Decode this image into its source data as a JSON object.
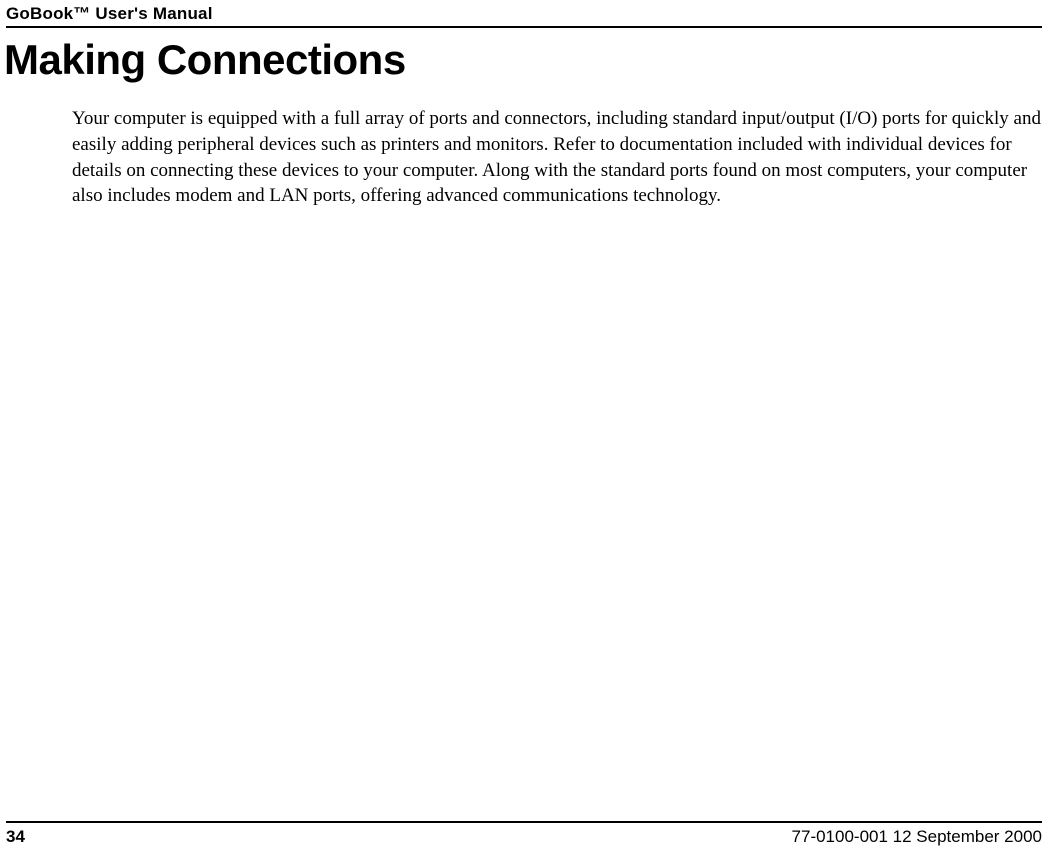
{
  "header": {
    "title": "GoBook™ User's Manual"
  },
  "chapter": {
    "title": "Making Connections"
  },
  "body": {
    "paragraph1": "Your computer is equipped with a full array of ports and connectors, including standard input/output (I/O) ports for quickly and easily adding peripheral devices such as printers and monitors. Refer to documentation included with individual devices for details on connecting these devices to your computer. Along with the standard ports found on most computers, your computer also includes modem and LAN ports, offering advanced communications technology."
  },
  "footer": {
    "page_number": "34",
    "doc_info": "77-0100-001   12 September 2000"
  },
  "colors": {
    "text": "#000000",
    "background": "#ffffff",
    "rule": "#000000"
  },
  "typography": {
    "header_fontsize": 17,
    "title_fontsize": 42,
    "body_fontsize": 19,
    "footer_fontsize": 17,
    "header_font": "Arial",
    "body_font": "Times serif"
  }
}
